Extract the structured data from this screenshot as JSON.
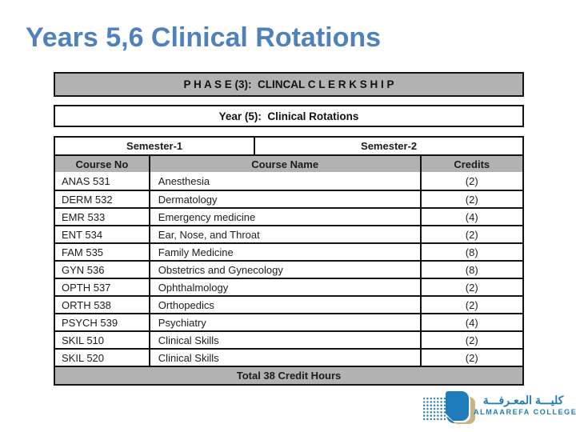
{
  "slide": {
    "title": "Years 5,6 Clinical Rotations"
  },
  "table": {
    "phase_header": "P H A S E (3):  CLINCAL C L E R K S H I P",
    "year_header": "Year (5):  Clinical Rotations",
    "semesters": {
      "left": "Semester-1",
      "right": "Semester-2"
    },
    "columns": {
      "course_no": "Course No",
      "course_name": "Course Name",
      "credits": "Credits"
    },
    "rows": [
      {
        "no": "ANAS 531",
        "name": "Anesthesia",
        "credits": "(2)"
      },
      {
        "no": "DERM 532",
        "name": "Dermatology",
        "credits": "(2)"
      },
      {
        "no": "EMR 533",
        "name": "Emergency medicine",
        "credits": "(4)"
      },
      {
        "no": "ENT 534",
        "name": "Ear, Nose, and Throat",
        "credits": "(2)"
      },
      {
        "no": "FAM 535",
        "name": "Family Medicine",
        "credits": "(8)"
      },
      {
        "no": "GYN 536",
        "name": "Obstetrics and Gynecology",
        "credits": "(8)"
      },
      {
        "no": "OPTH 537",
        "name": "Ophthalmology",
        "credits": "(2)"
      },
      {
        "no": "ORTH 538",
        "name": "Orthopedics",
        "credits": "(2)"
      },
      {
        "no": "PSYCH 539",
        "name": "Psychiatry",
        "credits": "(4)"
      },
      {
        "no": "SKIL 510",
        "name": "Clinical Skills",
        "credits": "(2)"
      },
      {
        "no": "SKIL 520",
        "name": "Clinical Skills",
        "credits": "(2)"
      }
    ],
    "total": "Total 38 Credit Hours"
  },
  "logo": {
    "arabic": "كليـــة المعـرفـــة",
    "english": "ALMAAREFA COLLEGE"
  },
  "colors": {
    "title_blue": "#4f81bd",
    "header_gray": "#b2b2b2",
    "logo_blue": "#1e7cba",
    "logo_dot": "#2f7fae",
    "logo_tan": "#c6b687"
  }
}
